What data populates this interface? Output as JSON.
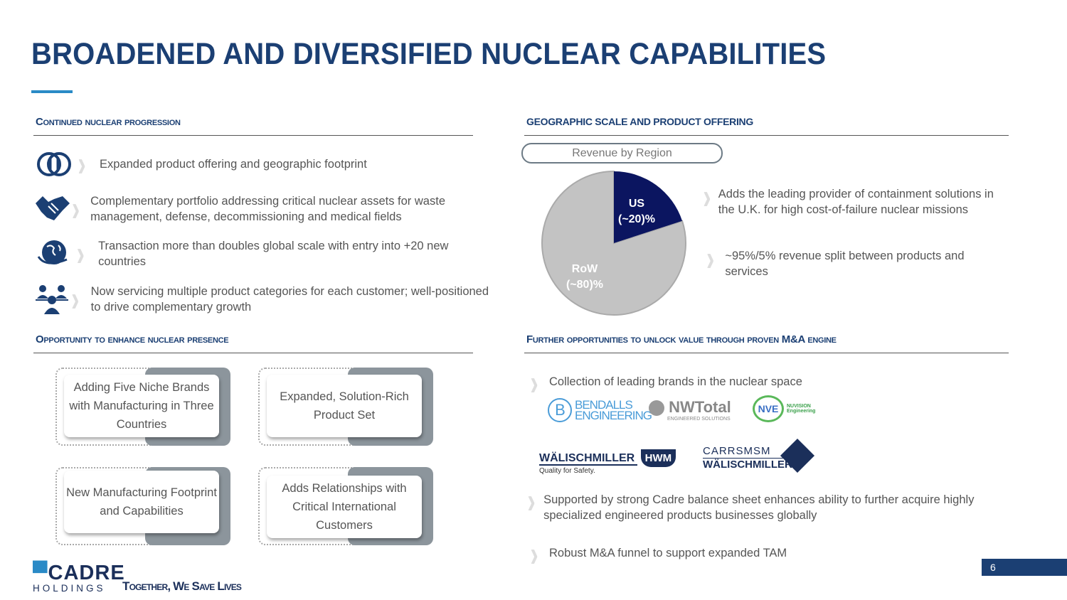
{
  "title": "BROADENED AND DIVERSIFIED NUCLEAR CAPABILITIES",
  "left": {
    "section1": "Continued nuclear progression",
    "items": [
      {
        "icon": "refresh-circles-icon",
        "text": "Expanded product offering and geographic footprint"
      },
      {
        "icon": "handshake-icon",
        "text": "Complementary portfolio addressing critical nuclear assets for waste management, defense, decommissioning and medical fields"
      },
      {
        "icon": "globe-icon",
        "text": "Transaction more than doubles global scale with entry into +20 new countries"
      },
      {
        "icon": "people-network-icon",
        "text": "Now servicing multiple product categories for each customer; well-positioned to drive complementary growth"
      }
    ],
    "section2": "Opportunity to enhance nuclear presence",
    "boxes": [
      "Adding Five Niche Brands with Manufacturing in Three Countries",
      "Expanded, Solution-Rich Product Set",
      "New Manufacturing Footprint and Capabilities",
      "Adds Relationships with Critical International Customers"
    ]
  },
  "right": {
    "section1": "GEOGRAPHIC SCALE AND PRODUCT OFFERING",
    "pill": "Revenue by Region",
    "bullets": [
      "Adds the leading provider of containment solutions in the U.K. for high cost-of-failure nuclear missions",
      "~95%/5% revenue split between products and services"
    ],
    "section2": "Further opportunities to unlock value through proven M&A engine",
    "bullets2": [
      "Collection of leading brands in the nuclear space",
      "Supported by strong Cadre balance sheet enhances ability to further acquire highly specialized engineered products businesses globally",
      "Robust M&A funnel to support expanded TAM"
    ],
    "logos": [
      "BENDALLS ENGINEERING",
      "NWTotal",
      "ENGINEERED SOLUTIONS",
      "NVE",
      "NUVISION Engineering",
      "WÄLISCHMILLER",
      "Quality for Safety.",
      "HWM",
      "CARRSMSM",
      "WÄLISCHMILLER"
    ]
  },
  "chart_data": {
    "type": "pie",
    "title": "Revenue by Region",
    "categories": [
      "US",
      "RoW"
    ],
    "values": [
      20,
      80
    ],
    "labels": [
      "US\n(~20)%",
      "RoW\n(~80)%"
    ],
    "colors": [
      "#0b1560",
      "#c3c3c3"
    ]
  },
  "footer": {
    "brand": "CADRE",
    "brand_sub": "HOLDINGS",
    "tagline": "Together, We Save Lives",
    "page": "6"
  },
  "colors": {
    "navy": "#1b3f73",
    "accent": "#2a8ac6",
    "pie_us": "#0b1560",
    "pie_row": "#c3c3c3"
  }
}
